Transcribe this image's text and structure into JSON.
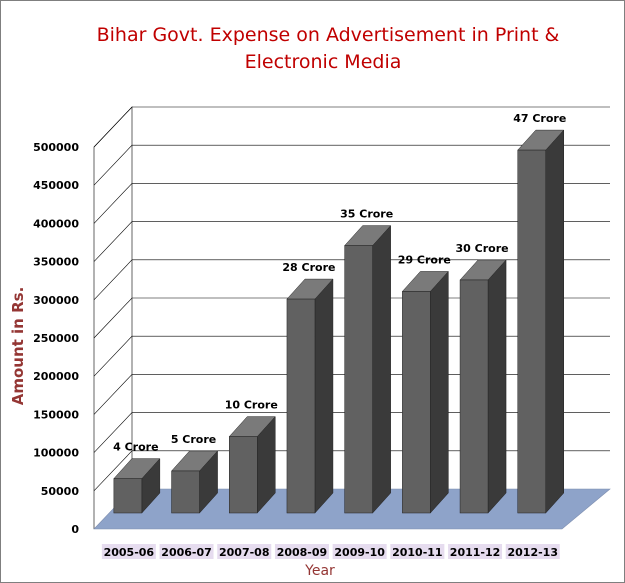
{
  "chart_data": {
    "type": "bar",
    "title": "Bihar Govt. Expense on Advertisement in Print & Electronic Media",
    "title_lines": [
      "Bihar Govt. Expense on Advertisement in Print &",
      "Electronic Media"
    ],
    "xlabel": "Year",
    "ylabel": "Amount in Rs.",
    "ylim": [
      0,
      500000
    ],
    "yticks": [
      0,
      50000,
      100000,
      150000,
      200000,
      250000,
      300000,
      350000,
      400000,
      450000,
      500000
    ],
    "ytick_labels": [
      "0",
      "50000",
      "100000",
      "150000",
      "200000",
      "250000",
      "300000",
      "350000",
      "400000",
      "450000",
      "500000"
    ],
    "categories": [
      "2005-06",
      "2006-07",
      "2007-08",
      "2008-09",
      "2009-10",
      "2010-11",
      "2011-12",
      "2012-13"
    ],
    "values": [
      45000,
      55000,
      100000,
      280000,
      350000,
      290000,
      305000,
      475000
    ],
    "data_labels": [
      "4 Crore",
      "5 Crore",
      "10 Crore",
      "28 Crore",
      "35 Crore",
      "29 Crore",
      "30 Crore",
      "47 Crore"
    ],
    "grid": true,
    "style": "3d-column",
    "colors": {
      "bar_front": "#616161",
      "bar_side": "#3a3a3a",
      "bar_top": "#7a7a7a",
      "floor": "#8ea3c9",
      "title": "#c00000",
      "axis_title": "#943634",
      "category_label_bg": "#e6dcef"
    }
  }
}
